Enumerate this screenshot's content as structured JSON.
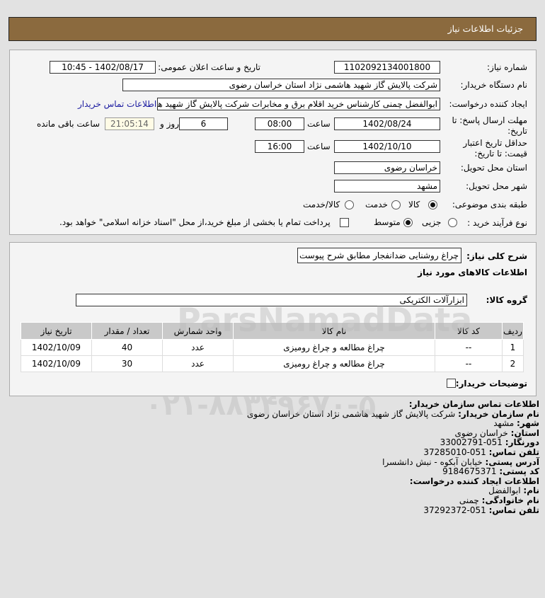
{
  "header": {
    "title": "جزئیات اطلاعات نیاز"
  },
  "form": {
    "need_number_label": "شماره نیاز:",
    "need_number": "1102092134001800",
    "announce_label": "تاریخ و ساعت اعلان عمومی:",
    "announce_value": "1402/08/17 - 10:45",
    "buyer_label": "نام دستگاه خریدار:",
    "buyer_value": "شرکت پالایش گاز شهید هاشمی نژاد   استان خراسان رضوی",
    "creator_label": "ایجاد کننده درخواست:",
    "creator_value": "ابوالفضل چمنی کارشناس خرید اقلام برق و مخابرات شرکت پالایش گاز شهید هاشمی نژاد",
    "contact_link": "اطلاعات تماس خریدار",
    "deadline_label": "مهلت ارسال پاسخ: تا تاریخ:",
    "deadline_date": "1402/08/24",
    "time_label": "ساعت",
    "deadline_time": "08:00",
    "days": "6",
    "days_label": "روز و",
    "remaining": "21:05:14",
    "remaining_label": "ساعت باقی مانده",
    "validity_label": "حداقل تاریخ اعتبار قیمت: تا تاریخ:",
    "validity_date": "1402/10/10",
    "validity_time": "16:00",
    "province_label": "استان محل تحویل:",
    "province": "خراسان رضوی",
    "city_label": "شهر محل تحویل:",
    "city": "مشهد",
    "category_label": "طبقه بندی موضوعی:",
    "category_options": [
      "کالا",
      "خدمت",
      "کالا/خدمت"
    ],
    "category_selected": "کالا",
    "process_label": "نوع فرآیند خرید :",
    "process_options": [
      "جزیی",
      "متوسط"
    ],
    "process_selected": "متوسط",
    "payment_note": "پرداخت تمام یا بخشی از مبلغ خرید،از محل \"اسناد خزانه اسلامی\" خواهد بود.",
    "payment_checked": false
  },
  "needs": {
    "summary_label": "شرح کلی نیاز:",
    "summary": "چراغ روشنایی ضدانفجار مطابق شرح پیوست",
    "items_title": "اطلاعات کالاهای مورد نیاز",
    "group_label": "گروه کالا:",
    "group": "ابزارآلات الکتریکی",
    "columns": [
      "ردیف",
      "کد کالا",
      "نام کالا",
      "واحد شمارش",
      "تعداد / مقدار",
      "تاریخ نیاز"
    ],
    "rows": [
      {
        "idx": "1",
        "code": "--",
        "name": "چراغ مطالعه و چراغ رومیزی",
        "unit": "عدد",
        "qty": "40",
        "date": "1402/10/09"
      },
      {
        "idx": "2",
        "code": "--",
        "name": "چراغ مطالعه و چراغ رومیزی",
        "unit": "عدد",
        "qty": "30",
        "date": "1402/10/09"
      }
    ],
    "buyer_notes_label": "توضیحات خریدار:"
  },
  "contact": {
    "title": "اطلاعات تماس سازمان خریدار:",
    "org_label": "نام سازمان خریدار:",
    "org": "شرکت پالایش گاز شهید هاشمی نژاد استان خراسان رضوی",
    "city_label": "شهر:",
    "city": "مشهد",
    "province_label": "استان:",
    "province": "خراسان رضوی",
    "fax_label": "دورنگار:",
    "fax": "051-33002791",
    "phone_label": "تلفن تماس:",
    "phone": "051-37285010",
    "address_label": "آدرس پستی:",
    "address": "خیابان آبکوه - نبش دانشسرا",
    "postal_label": "کد پستی:",
    "postal": "9184675371",
    "creator_title": "اطلاعات ایجاد کننده درخواست:",
    "name_label": "نام:",
    "name": "ابوالفضل",
    "family_label": "نام خانوادگی:",
    "family": "چمنی",
    "creator_phone_label": "تلفن تماس:",
    "creator_phone": "051-37292372"
  },
  "watermark": {
    "brand": "ParsNamadData",
    "phone": "۰۲۱-۸۸۳۴۹۶۷۰-۵"
  }
}
